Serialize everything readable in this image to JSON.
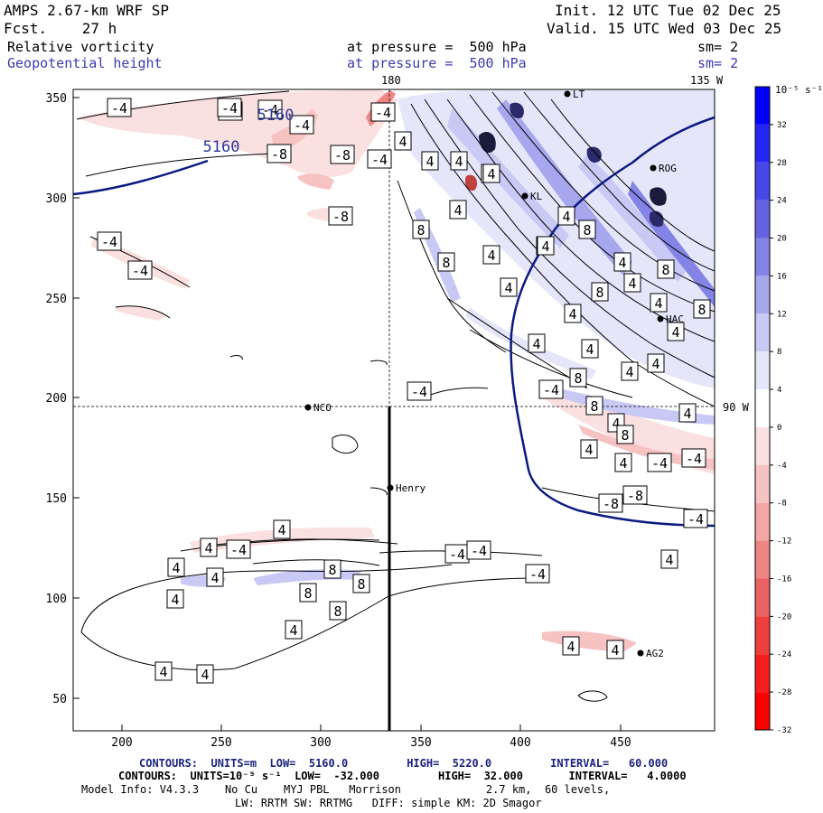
{
  "header": {
    "title": "AMPS 2.67-km WRF SP",
    "fcst": "Fcst.    27 h",
    "init": "Init. 12 UTC Tue 02 Dec 25",
    "valid": "Valid. 15 UTC Wed 03 Dec 25",
    "field1": "Relative vorticity",
    "field2": "Geopotential height",
    "level1": "at pressure =  500 hPa",
    "level2": "at pressure =  500 hPa",
    "sm1": "sm= 2",
    "sm2": "sm= 2"
  },
  "map": {
    "lon_top_left": "180",
    "lon_top_right": "135 W",
    "lat_right": "90 W",
    "x_ticks": [
      "200",
      "250",
      "300",
      "350",
      "400",
      "450"
    ],
    "y_ticks": [
      "50",
      "100",
      "150",
      "200",
      "250",
      "300",
      "350"
    ],
    "height_labels": [
      "5160",
      "5160"
    ],
    "stations": [
      {
        "name": "NCO"
      },
      {
        "name": "Henry"
      },
      {
        "name": "AG2"
      },
      {
        "name": "ROG"
      },
      {
        "name": "HAC"
      },
      {
        "name": "KL"
      },
      {
        "name": "LT"
      }
    ],
    "vort_labels": [
      {
        "t": "-4"
      },
      {
        "t": "-4"
      },
      {
        "t": "-4"
      },
      {
        "t": "-8"
      },
      {
        "t": "-8"
      },
      {
        "t": "-8"
      },
      {
        "t": "-4"
      },
      {
        "t": "-4"
      },
      {
        "t": "-4"
      },
      {
        "t": "-4"
      },
      {
        "t": "4"
      },
      {
        "t": "4"
      },
      {
        "t": "4"
      },
      {
        "t": "4"
      },
      {
        "t": "4"
      },
      {
        "t": "8"
      },
      {
        "t": "8"
      },
      {
        "t": "4"
      },
      {
        "t": "4"
      },
      {
        "t": "4"
      },
      {
        "t": "8"
      },
      {
        "t": "8"
      },
      {
        "t": "4"
      },
      {
        "t": "4"
      },
      {
        "t": "8"
      },
      {
        "t": "8"
      },
      {
        "t": "4"
      },
      {
        "t": "4"
      },
      {
        "t": "8"
      },
      {
        "t": "4"
      },
      {
        "t": "8"
      },
      {
        "t": "4"
      },
      {
        "t": "4"
      },
      {
        "t": "4"
      },
      {
        "t": "4"
      },
      {
        "t": "8"
      },
      {
        "t": "4"
      },
      {
        "t": "4"
      },
      {
        "t": "-4"
      },
      {
        "t": "-4"
      },
      {
        "t": "4"
      },
      {
        "t": "8"
      },
      {
        "t": "4"
      },
      {
        "t": "-4"
      },
      {
        "t": "-4"
      },
      {
        "t": "-8"
      },
      {
        "t": "-8"
      },
      {
        "t": "-4"
      },
      {
        "t": "4"
      },
      {
        "t": "4"
      },
      {
        "t": "4"
      },
      {
        "t": "-4"
      },
      {
        "t": "-4"
      },
      {
        "t": "-4"
      },
      {
        "t": "-4"
      },
      {
        "t": "4"
      },
      {
        "t": "4"
      },
      {
        "t": "4"
      },
      {
        "t": "8"
      },
      {
        "t": "8"
      },
      {
        "t": "8"
      },
      {
        "t": "8"
      },
      {
        "t": "4"
      },
      {
        "t": "4"
      },
      {
        "t": "4"
      },
      {
        "t": "4"
      },
      {
        "t": "4"
      },
      {
        "t": "-4"
      },
      {
        "t": "-4"
      },
      {
        "t": "4"
      },
      {
        "t": "4"
      },
      {
        "t": "4"
      }
    ]
  },
  "colorbar": {
    "unit": "10⁻⁵ s⁻¹",
    "ticks": [
      "32",
      "28",
      "24",
      "20",
      "16",
      "12",
      "8",
      "4",
      "0",
      "-4",
      "-8",
      "-12",
      "-16",
      "-20",
      "-24",
      "-28",
      "-32"
    ],
    "colors": [
      "#0000ff",
      "#2626f2",
      "#4747e8",
      "#6464e2",
      "#8484e6",
      "#a7a7ee",
      "#c9c9f5",
      "#e6e6fb",
      "#ffffff",
      "#fbe0e0",
      "#f6c2c2",
      "#f2a6a6",
      "#ee8585",
      "#ea6262",
      "#ee3f3f",
      "#f41e1e",
      "#ff0000"
    ]
  },
  "footer": {
    "line1": "CONTOURS:  UNITS=m  LOW=  5160.0         HIGH=  5220.0         INTERVAL=   60.000",
    "line2": "CONTOURS:  UNITS=10⁻⁵ s⁻¹  LOW=  -32.000         HIGH=  32.000       INTERVAL=   4.0000",
    "line3": "Model Info: V4.3.3    No Cu    MYJ PBL   Morrison             2.7 km,  60 levels,",
    "line4": "LW: RRTM SW: RRTMG   DIFF: simple KM: 2D Smagor"
  }
}
